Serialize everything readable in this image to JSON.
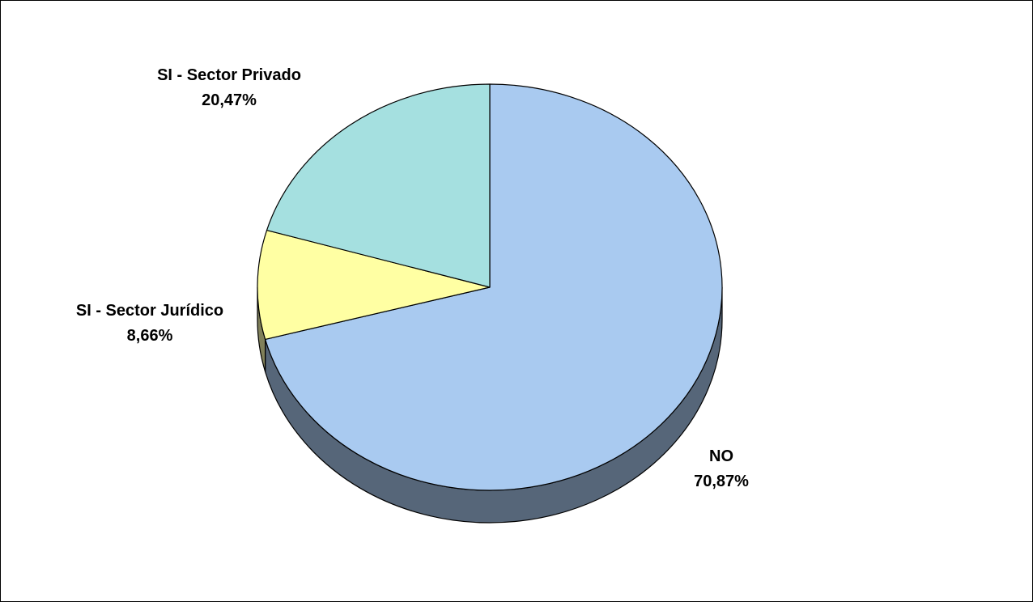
{
  "chart_data": {
    "type": "pie",
    "style": "3d",
    "title": "",
    "legend": "none",
    "slices": [
      {
        "label": "NO",
        "value": 70.87,
        "display_value": "70,87%",
        "color": "#A9CAF0",
        "side_color": "#566679"
      },
      {
        "label": "SI - Sector Jurídico",
        "value": 8.66,
        "display_value": "8,66%",
        "color": "#FFFFA3",
        "side_color": "#80805A"
      },
      {
        "label": "SI - Sector Privado",
        "value": 20.47,
        "display_value": "20,47%",
        "color": "#A5E0E0",
        "side_color": "#537070"
      }
    ]
  }
}
